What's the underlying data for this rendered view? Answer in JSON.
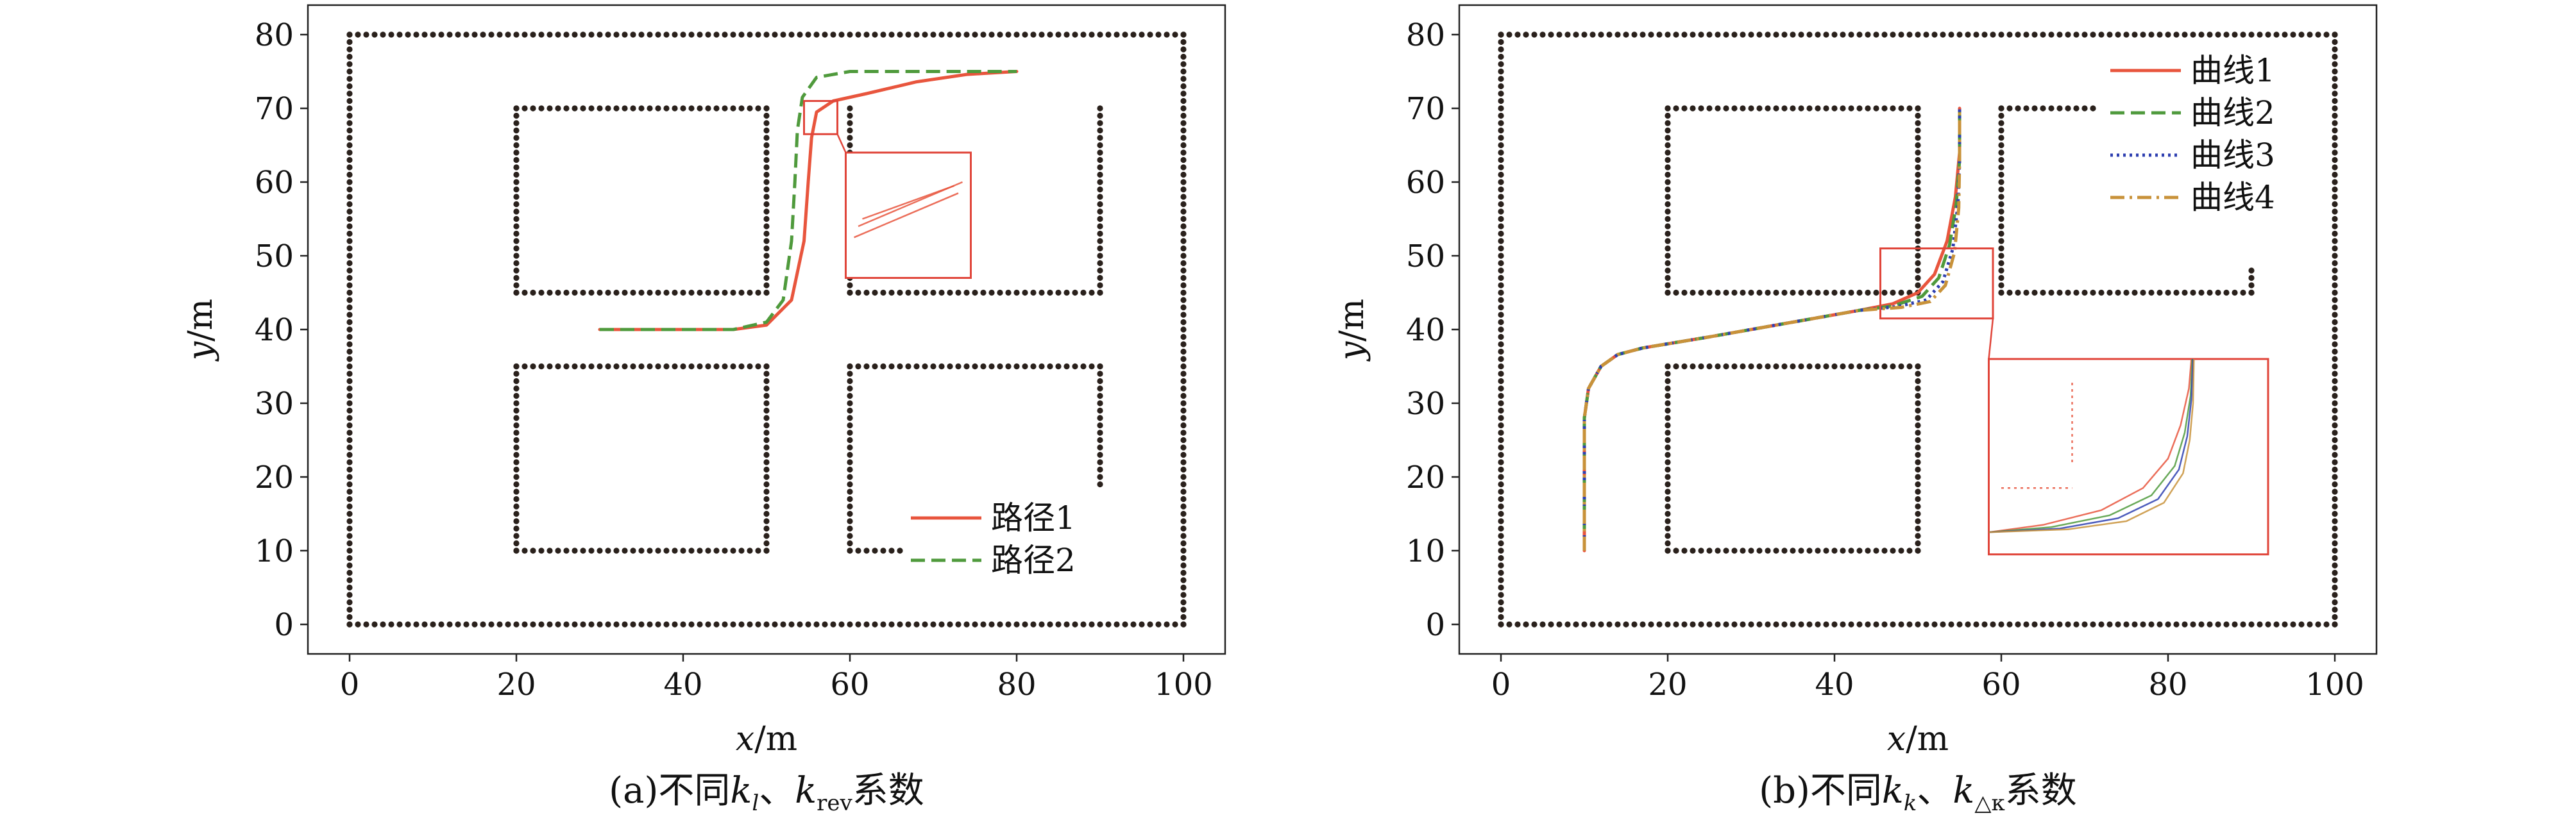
{
  "colors": {
    "obstacle": "#2a211c",
    "red": "#e8553d",
    "green": "#4f9a3c",
    "blue": "#2e3fb0",
    "brown": "#c8923a",
    "zoom_box": "#e0453a"
  },
  "chart_data": [
    {
      "type": "line",
      "panel": "a",
      "caption": {
        "prefix": "(a)不同",
        "k1": "k",
        "k1_sub": "l",
        "sep": "、",
        "k2": "k",
        "k2_sub": "rev",
        "suffix": "系数"
      },
      "xlabel": {
        "var": "x",
        "unit": "/m"
      },
      "ylabel": {
        "var": "y",
        "unit": "/m"
      },
      "xlim": [
        -5,
        105
      ],
      "ylim": [
        -4,
        84
      ],
      "xticks": [
        0,
        20,
        40,
        60,
        80,
        100
      ],
      "yticks": [
        0,
        10,
        20,
        30,
        40,
        50,
        60,
        70,
        80
      ],
      "legend_position": "lower-right",
      "series": [
        {
          "name": "路径1",
          "color_key": "red",
          "style": "solid",
          "x": [
            30,
            46,
            50,
            53,
            54.5,
            55,
            55.4,
            56,
            58,
            62,
            68,
            74,
            80
          ],
          "y": [
            40,
            40,
            40.6,
            44,
            52,
            60,
            66,
            69.5,
            71,
            72,
            73.6,
            74.6,
            75
          ]
        },
        {
          "name": "路径2",
          "color_key": "green",
          "style": "dashed",
          "x": [
            30,
            46,
            50,
            52,
            53,
            53.4,
            53.7,
            54.3,
            56,
            60,
            70,
            80
          ],
          "y": [
            40,
            40,
            41,
            44,
            52,
            60,
            67,
            71.5,
            74.2,
            75,
            75,
            75
          ]
        }
      ],
      "obstacles": {
        "boundary": {
          "x": [
            0,
            100
          ],
          "y": [
            0,
            80
          ]
        },
        "segments": [
          {
            "x": [
              20,
              50,
              50,
              20,
              20
            ],
            "y": [
              45,
              45,
              70,
              70,
              45
            ]
          },
          {
            "x": [
              60,
              60,
              90,
              90
            ],
            "y": [
              70,
              45,
              45,
              70
            ]
          },
          {
            "x": [
              20,
              20,
              50,
              50,
              20
            ],
            "y": [
              35,
              10,
              10,
              35,
              35
            ]
          },
          {
            "x": [
              60,
              60,
              90,
              90
            ],
            "y": [
              10,
              35,
              35,
              19
            ]
          },
          {
            "x": [
              60,
              66
            ],
            "y": [
              10,
              10
            ]
          }
        ]
      },
      "zoom": {
        "source_x": [
          54.5,
          58.5
        ],
        "source_y": [
          66.5,
          71
        ],
        "inset_x": [
          59.5,
          74.5
        ],
        "inset_y": [
          47,
          64
        ],
        "lines": [
          {
            "color_key": "red",
            "x": [
              60.5,
              73
            ],
            "y": [
              52.5,
              58.5
            ]
          },
          {
            "color_key": "red",
            "x": [
              61,
              73.5
            ],
            "y": [
              54,
              60
            ]
          },
          {
            "color_key": "red",
            "x": [
              61.5,
              72.5
            ],
            "y": [
              55,
              59.5
            ]
          }
        ]
      }
    },
    {
      "type": "line",
      "panel": "b",
      "caption": {
        "prefix": "(b)不同",
        "k1": "k",
        "k1_sub": "k",
        "sep": "、",
        "k2": "k",
        "k2_sub": "△κ",
        "suffix": "系数"
      },
      "xlabel": {
        "var": "x",
        "unit": "/m"
      },
      "ylabel": {
        "var": "y",
        "unit": "/m"
      },
      "xlim": [
        -5,
        105
      ],
      "ylim": [
        -4,
        84
      ],
      "xticks": [
        0,
        20,
        40,
        60,
        80,
        100
      ],
      "yticks": [
        0,
        10,
        20,
        30,
        40,
        50,
        60,
        70,
        80
      ],
      "legend_position": "top-right",
      "series": [
        {
          "name": "曲线1",
          "color_key": "red",
          "style": "solid",
          "x": [
            10,
            10,
            10.5,
            12,
            14,
            17,
            25,
            35,
            43,
            47,
            50,
            52,
            53.5,
            54.5,
            55,
            55
          ],
          "y": [
            10,
            28,
            32,
            35,
            36.6,
            37.5,
            39,
            41,
            42.6,
            43.5,
            45,
            47.5,
            52,
            58,
            64,
            70
          ]
        },
        {
          "name": "曲线2",
          "color_key": "green",
          "style": "dashed",
          "x": [
            10,
            10,
            10.5,
            12,
            14,
            17,
            25,
            35,
            43,
            47,
            50.5,
            52.5,
            53.8,
            54.6,
            55,
            55
          ],
          "y": [
            10,
            28,
            32,
            35,
            36.6,
            37.5,
            39,
            41,
            42.6,
            43.2,
            44.5,
            47,
            51.5,
            57,
            63,
            70
          ]
        },
        {
          "name": "曲线3",
          "color_key": "blue",
          "style": "dotted",
          "x": [
            10,
            10,
            10.5,
            12,
            14,
            17,
            25,
            35,
            43,
            47.5,
            51,
            53,
            54.2,
            54.8,
            55,
            55
          ],
          "y": [
            10,
            28,
            32,
            35,
            36.6,
            37.5,
            39,
            41,
            42.6,
            43.1,
            44,
            46.5,
            51,
            57,
            63,
            70
          ]
        },
        {
          "name": "曲线4",
          "color_key": "brown",
          "style": "dashdot",
          "x": [
            10,
            10,
            10.5,
            12,
            14,
            17,
            25,
            35,
            43,
            48,
            51.5,
            53.3,
            54.4,
            54.9,
            55,
            55
          ],
          "y": [
            10,
            28,
            32,
            35,
            36.6,
            37.5,
            39,
            41,
            42.6,
            43,
            43.8,
            46,
            50.5,
            56.5,
            63,
            70
          ]
        }
      ],
      "obstacles": {
        "boundary": {
          "x": [
            0,
            100
          ],
          "y": [
            0,
            80
          ]
        },
        "segments": [
          {
            "x": [
              20,
              50,
              50,
              20,
              20
            ],
            "y": [
              45,
              45,
              70,
              70,
              45
            ]
          },
          {
            "x": [
              71,
              60,
              60,
              90,
              90
            ],
            "y": [
              70,
              70,
              45,
              45,
              48
            ]
          },
          {
            "x": [
              20,
              20,
              50,
              50,
              20
            ],
            "y": [
              35,
              10,
              10,
              35,
              35
            ]
          }
        ]
      },
      "zoom": {
        "source_x": [
          45.5,
          59
        ],
        "source_y": [
          41.5,
          51
        ],
        "inset_x": [
          58.5,
          92
        ],
        "inset_y": [
          9.5,
          36
        ],
        "lines": [
          {
            "color_key": "red",
            "x": [
              58.5,
              65,
              72,
              77,
              80,
              81.5,
              82.5,
              82.8
            ],
            "y": [
              12.5,
              13.5,
              15.5,
              18.5,
              22.5,
              27,
              32,
              36
            ]
          },
          {
            "color_key": "green",
            "x": [
              58.5,
              66,
              73,
              78,
              80.8,
              82,
              82.7,
              82.9
            ],
            "y": [
              12.5,
              13.2,
              14.8,
              17.5,
              21.5,
              26,
              31,
              36
            ]
          },
          {
            "color_key": "blue",
            "x": [
              58.5,
              67,
              74,
              78.8,
              81.3,
              82.3,
              82.8,
              83
            ],
            "y": [
              12.5,
              13,
              14.4,
              17,
              21,
              25.5,
              30.5,
              36
            ]
          },
          {
            "color_key": "brown",
            "x": [
              58.5,
              68,
              75,
              79.5,
              81.8,
              82.6,
              83,
              83.1
            ],
            "y": [
              12.5,
              12.9,
              14,
              16.5,
              20.5,
              25,
              30,
              36
            ]
          },
          {
            "color_key": "red",
            "style": "dotted",
            "x": [
              68.5,
              68.5
            ],
            "y": [
              22,
              33
            ]
          },
          {
            "color_key": "red",
            "style": "dotted",
            "x": [
              60,
              68.5
            ],
            "y": [
              18.5,
              18.5
            ]
          }
        ]
      }
    }
  ]
}
